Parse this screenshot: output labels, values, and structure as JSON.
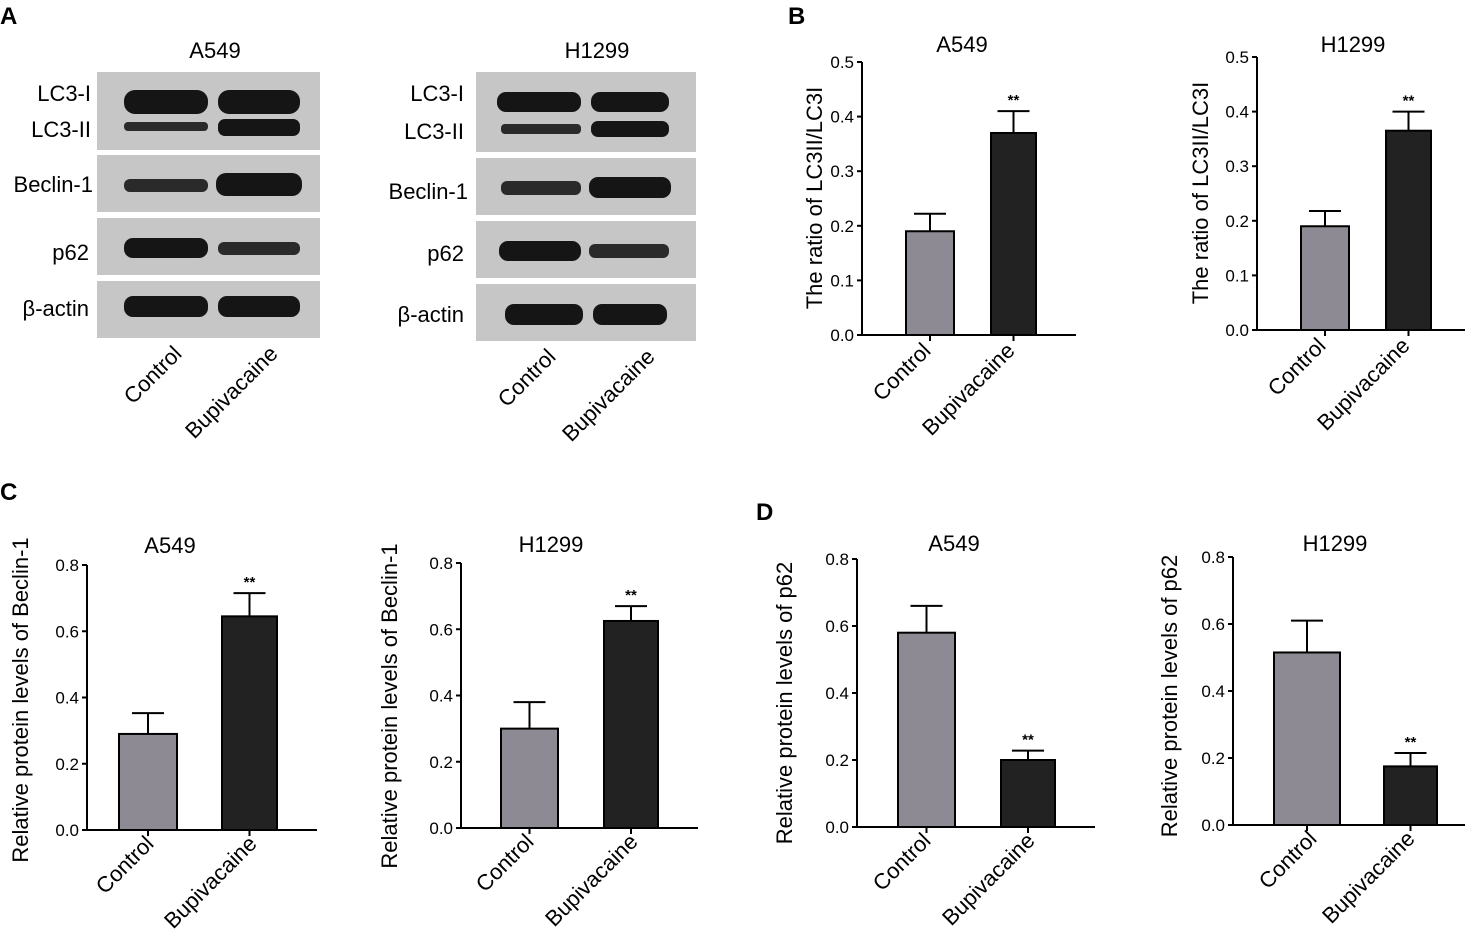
{
  "panel_letters": [
    "A",
    "B",
    "C",
    "D"
  ],
  "western_blots": [
    {
      "title": "A549",
      "rows": [
        "LC3-I",
        "LC3-II",
        "Beclin-1",
        "p62",
        "β-actin"
      ],
      "lanes": [
        "Control",
        "Bupivacaine"
      ]
    },
    {
      "title": "H1299",
      "rows": [
        "LC3-I",
        "LC3-II",
        "Beclin-1",
        "p62",
        "β-actin"
      ],
      "lanes": [
        "Control",
        "Bupivacaine"
      ]
    }
  ],
  "colors": {
    "control_bar": "#8e8a93",
    "bupivacaine_bar": "#222222",
    "blot_background": "#c6c6c6",
    "band": "#151515"
  },
  "chart_data": [
    {
      "type": "bar",
      "panel": "B",
      "title": "A549",
      "ylabel": "The ratio of LC3II/LC3I",
      "categories": [
        "Control",
        "Bupivacaine"
      ],
      "values": [
        0.19,
        0.37
      ],
      "errors": [
        0.032,
        0.04
      ],
      "significance": [
        "",
        "**"
      ],
      "ylim": [
        0,
        0.5
      ],
      "yticks": [
        "0.0",
        "0.1",
        "0.2",
        "0.3",
        "0.4",
        "0.5"
      ]
    },
    {
      "type": "bar",
      "panel": "B",
      "title": "H1299",
      "ylabel": "The ratio of LC3II/LC3I",
      "categories": [
        "Control",
        "Bupivacaine"
      ],
      "values": [
        0.19,
        0.365
      ],
      "errors": [
        0.028,
        0.035
      ],
      "significance": [
        "",
        "**"
      ],
      "ylim": [
        0,
        0.5
      ],
      "yticks": [
        "0.0",
        "0.1",
        "0.2",
        "0.3",
        "0.4",
        "0.5"
      ]
    },
    {
      "type": "bar",
      "panel": "C",
      "title": "A549",
      "ylabel": "Relative protein levels of Beclin-1",
      "categories": [
        "Control",
        "Bupivacaine"
      ],
      "values": [
        0.29,
        0.645
      ],
      "errors": [
        0.063,
        0.07
      ],
      "significance": [
        "",
        "**"
      ],
      "ylim": [
        0,
        0.8
      ],
      "yticks": [
        "0.0",
        "0.2",
        "0.4",
        "0.6",
        "0.8"
      ]
    },
    {
      "type": "bar",
      "panel": "C",
      "title": "H1299",
      "ylabel": "Relative protein levels of Beclin-1",
      "categories": [
        "Control",
        "Bupivacaine"
      ],
      "values": [
        0.3,
        0.625
      ],
      "errors": [
        0.08,
        0.045
      ],
      "significance": [
        "",
        "**"
      ],
      "ylim": [
        0,
        0.8
      ],
      "yticks": [
        "0.0",
        "0.2",
        "0.4",
        "0.6",
        "0.8"
      ]
    },
    {
      "type": "bar",
      "panel": "D",
      "title": "A549",
      "ylabel": "Relative protein levels of p62",
      "categories": [
        "Control",
        "Bupivacaine"
      ],
      "values": [
        0.58,
        0.2
      ],
      "errors": [
        0.08,
        0.028
      ],
      "significance": [
        "",
        "**"
      ],
      "ylim": [
        0,
        0.8
      ],
      "yticks": [
        "0.0",
        "0.2",
        "0.4",
        "0.6",
        "0.8"
      ]
    },
    {
      "type": "bar",
      "panel": "D",
      "title": "H1299",
      "ylabel": "Relative protein levels of p62",
      "categories": [
        "Control",
        "Bupivacaine"
      ],
      "values": [
        0.515,
        0.175
      ],
      "errors": [
        0.095,
        0.04
      ],
      "significance": [
        "",
        "**"
      ],
      "ylim": [
        0,
        0.8
      ],
      "yticks": [
        "0.0",
        "0.2",
        "0.4",
        "0.6",
        "0.8"
      ]
    }
  ]
}
